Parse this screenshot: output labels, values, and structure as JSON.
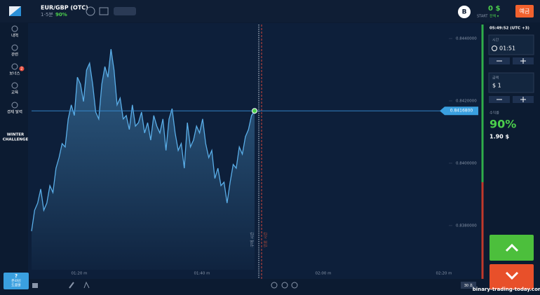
{
  "header": {
    "asset": "EUR/GBP (OTC)",
    "duration": "1-5분",
    "payout": "90%",
    "avatar": "B",
    "balance": "0 $",
    "account": "START",
    "balance_menu": "잔액 ▾",
    "deposit": "예금"
  },
  "sidebar": {
    "items": [
      "내역",
      "관련",
      "보너스",
      "교육",
      "경제 달력"
    ],
    "badge": "2",
    "challenge": [
      "WINTER",
      "CHALLENGE"
    ],
    "help_icon": "?",
    "help": [
      "온라인",
      "도움말"
    ]
  },
  "chart": {
    "type": "line",
    "color": "#5aaee8",
    "values": [
      0.83782,
      0.83849,
      0.83872,
      0.83917,
      0.83849,
      0.83872,
      0.83928,
      0.83906,
      0.83984,
      0.84018,
      0.84063,
      0.84052,
      0.84142,
      0.84187,
      0.84153,
      0.84276,
      0.84254,
      0.84198,
      0.84299,
      0.84321,
      0.84254,
      0.84164,
      0.84142,
      0.84254,
      0.8431,
      0.84276,
      0.84366,
      0.84299,
      0.84187,
      0.84209,
      0.84142,
      0.84153,
      0.84108,
      0.84187,
      0.84119,
      0.8413,
      0.84164,
      0.84097,
      0.8413,
      0.84074,
      0.84153,
      0.84119,
      0.84097,
      0.84142,
      0.84041,
      0.84142,
      0.84175,
      0.84097,
      0.84041,
      0.84063,
      0.83984,
      0.8413,
      0.84052,
      0.84074,
      0.84119,
      0.84097,
      0.84142,
      0.84063,
      0.84018,
      0.84041,
      0.83951,
      0.83984,
      0.83928,
      0.83939,
      0.83872,
      0.83939,
      0.83996,
      0.83984,
      0.84052,
      0.84029,
      0.84085,
      0.84108,
      0.84153,
      0.84168
    ],
    "ylim": [
      0.83658,
      0.84445
    ],
    "yticks": [
      {
        "value": 0.844,
        "label": "0.8440000"
      },
      {
        "value": 0.842,
        "label": "0.8420000"
      },
      {
        "value": 0.84,
        "label": "0.8400000"
      },
      {
        "value": 0.838,
        "label": "0.8380000"
      }
    ],
    "current": {
      "value": 0.84168,
      "label": "0.8416800"
    },
    "time_labels": [
      "01:20 m",
      "01:40 m",
      "02:00 m",
      "02:20 m"
    ],
    "markers": [
      "구매 시간",
      "만료 시간"
    ],
    "zoom": "30 초"
  },
  "panel": {
    "clock": "05:49:52 (UTC +3)",
    "time_label": "시간",
    "time": "01:51",
    "amount_label": "금액",
    "amount": "$ 1",
    "profit_label": "수익률",
    "profit": "90%",
    "payout": "1.90 $"
  },
  "watermark": "binary-trading-today.com"
}
